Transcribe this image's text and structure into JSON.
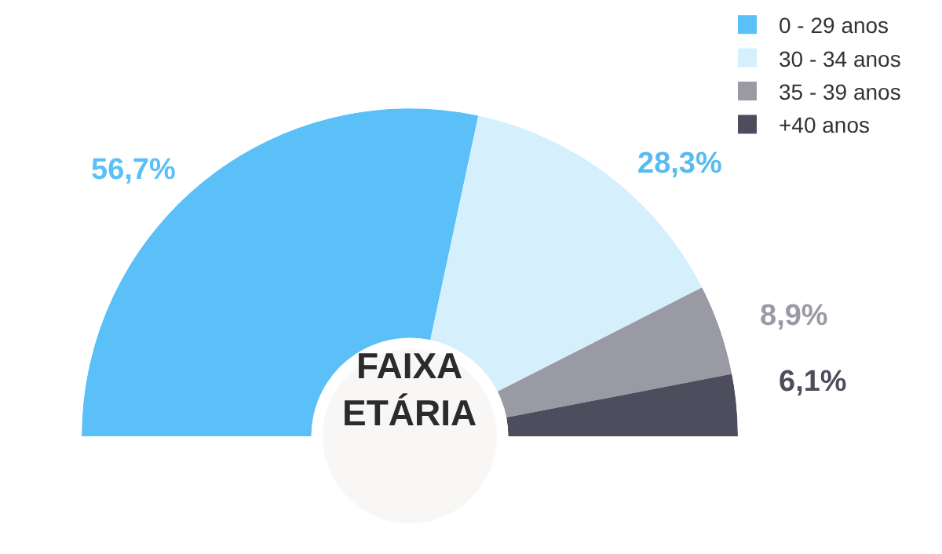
{
  "chart_data": {
    "type": "donut",
    "title": "FAIXA ETÁRIA",
    "categories": [
      "0 - 29 anos",
      "30 - 34 anos",
      "35 - 39 anos",
      "+40 anos"
    ],
    "values": [
      56.7,
      28.3,
      8.9,
      6.1
    ],
    "colors": [
      "#5bc0f8",
      "#d6effc",
      "#9a9aa5",
      "#4d4d5e"
    ],
    "value_labels": [
      "56,7%",
      "28,3%",
      "8,9%",
      "6,1%"
    ],
    "legend": "top right"
  }
}
